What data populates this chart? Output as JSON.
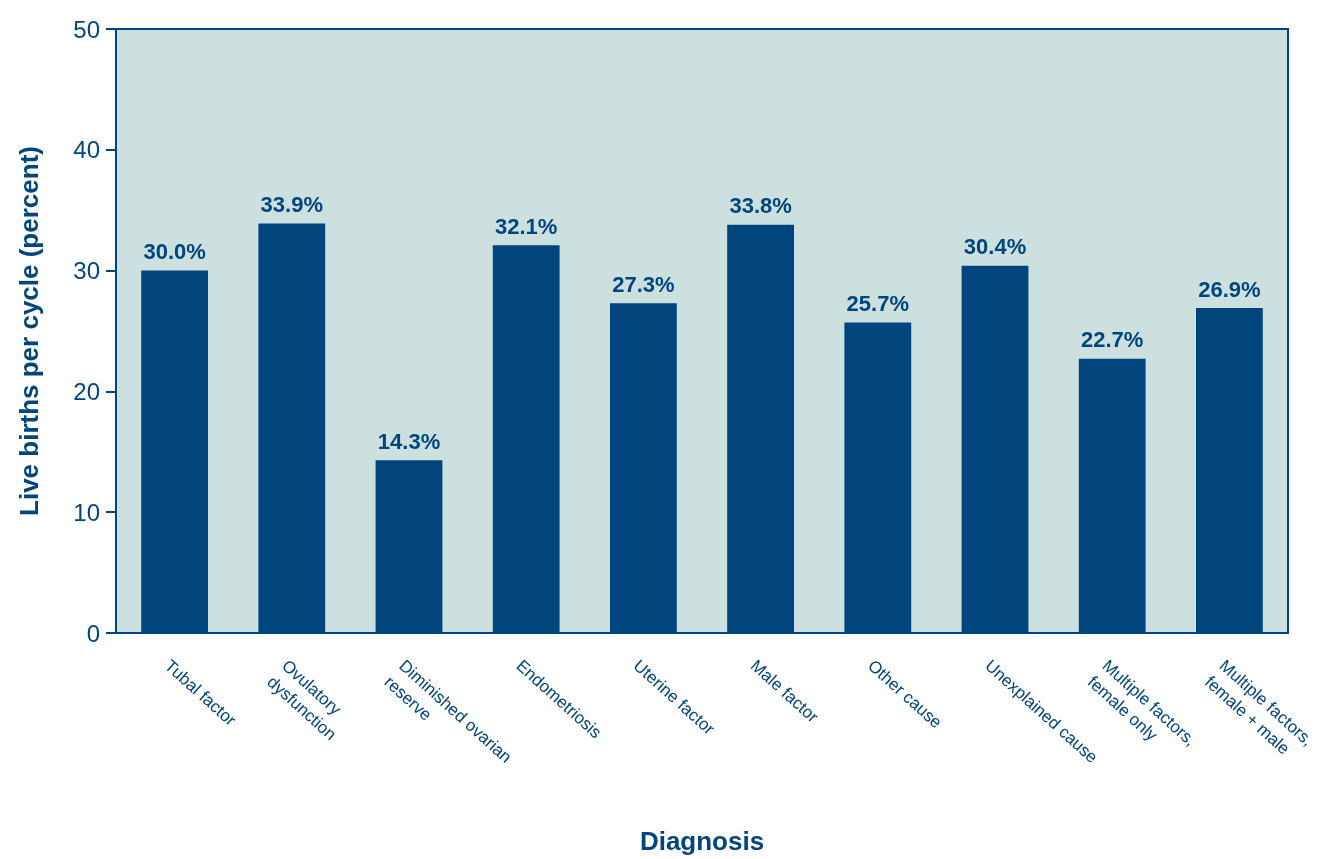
{
  "chart_data": {
    "type": "bar",
    "xlabel": "Diagnosis",
    "ylabel": "Live births per cycle (percent)",
    "categories": [
      "Tubal factor",
      "Ovulatory\ndysfunction",
      "Diminished ovarian\nreserve",
      "Endometriosis",
      "Uterine factor",
      "Male factor",
      "Other cause",
      "Unexplained cause",
      "Multiple factors,\nfemale only",
      "Multiple factors,\nfemale + male"
    ],
    "values": [
      30.0,
      33.9,
      14.3,
      32.1,
      27.3,
      33.8,
      25.7,
      30.4,
      22.7,
      26.9
    ],
    "value_labels": [
      "30.0%",
      "33.9%",
      "14.3%",
      "32.1%",
      "27.3%",
      "33.8%",
      "25.7%",
      "30.4%",
      "22.7%",
      "26.9%"
    ],
    "color": "#00457c",
    "ylim": [
      0,
      50
    ],
    "yticks": [
      0,
      10,
      20,
      30,
      40,
      50
    ],
    "grid": false
  }
}
